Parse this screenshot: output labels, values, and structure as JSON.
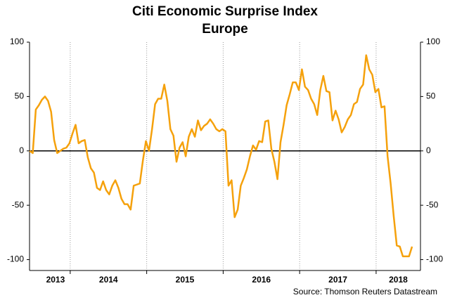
{
  "chart_data": {
    "type": "line",
    "title": "Citi Economic Surprise Index",
    "subtitle": "Europe",
    "source": "Source: Thomson Reuters Datastream",
    "year_labels": [
      "2013",
      "2014",
      "2015",
      "2016",
      "2017",
      "2018"
    ],
    "xlim": [
      2013.468,
      2018.58
    ],
    "xticks": [
      2014,
      2015,
      2016,
      2017,
      2018
    ],
    "ylim": [
      -110,
      100
    ],
    "yticks": [
      -100,
      -50,
      0,
      50,
      100
    ],
    "y2lim": [
      -110,
      100
    ],
    "y2ticks": [
      -100,
      -50,
      0,
      50,
      100
    ],
    "x": [
      2013.47,
      2013.51,
      2013.55,
      2013.59,
      2013.63,
      2013.67,
      2013.71,
      2013.75,
      2013.79,
      2013.83,
      2013.87,
      2013.91,
      2013.95,
      2013.99,
      2014.03,
      2014.07,
      2014.11,
      2014.15,
      2014.19,
      2014.23,
      2014.27,
      2014.31,
      2014.35,
      2014.39,
      2014.43,
      2014.47,
      2014.51,
      2014.55,
      2014.59,
      2014.63,
      2014.67,
      2014.71,
      2014.75,
      2014.79,
      2014.83,
      2014.87,
      2014.91,
      2014.95,
      2014.99,
      2015.03,
      2015.07,
      2015.11,
      2015.15,
      2015.19,
      2015.23,
      2015.27,
      2015.31,
      2015.35,
      2015.39,
      2015.43,
      2015.47,
      2015.51,
      2015.55,
      2015.59,
      2015.63,
      2015.67,
      2015.71,
      2015.75,
      2015.79,
      2015.83,
      2015.87,
      2015.91,
      2015.95,
      2015.99,
      2016.03,
      2016.07,
      2016.11,
      2016.15,
      2016.19,
      2016.23,
      2016.27,
      2016.31,
      2016.35,
      2016.39,
      2016.43,
      2016.47,
      2016.51,
      2016.55,
      2016.59,
      2016.63,
      2016.67,
      2016.71,
      2016.75,
      2016.79,
      2016.83,
      2016.87,
      2016.91,
      2016.95,
      2016.99,
      2017.03,
      2017.07,
      2017.11,
      2017.15,
      2017.19,
      2017.23,
      2017.27,
      2017.31,
      2017.35,
      2017.39,
      2017.43,
      2017.47,
      2017.51,
      2017.55,
      2017.59,
      2017.63,
      2017.67,
      2017.71,
      2017.75,
      2017.79,
      2017.83,
      2017.87,
      2017.91,
      2017.95,
      2017.99,
      2018.03,
      2018.07,
      2018.11,
      2018.15,
      2018.19,
      2018.23,
      2018.27,
      2018.31,
      2018.35,
      2018.39,
      2018.43,
      2018.47
    ],
    "series": [
      {
        "name": "Citi Economic Surprise Index Europe",
        "color": "#f5a10c",
        "values": [
          0,
          -2,
          38,
          42,
          47,
          50,
          46,
          36,
          10,
          -2,
          0,
          2,
          3,
          7,
          16,
          24,
          7,
          9,
          10,
          -6,
          -16,
          -20,
          -34,
          -36,
          -28,
          -36,
          -40,
          -32,
          -27,
          -34,
          -44,
          -49,
          -49,
          -54,
          -32,
          -31,
          -30,
          -9,
          9,
          0,
          20,
          43,
          48,
          48,
          61,
          46,
          20,
          14,
          -10,
          3,
          8,
          -5,
          13,
          20,
          13,
          28,
          19,
          23,
          25,
          29,
          25,
          20,
          18,
          20,
          18,
          -32,
          -27,
          -61,
          -54,
          -32,
          -25,
          -17,
          -5,
          5,
          1,
          9,
          8,
          27,
          28,
          2,
          -10,
          -26,
          8,
          24,
          42,
          52,
          63,
          63,
          56,
          75,
          59,
          56,
          48,
          43,
          33,
          56,
          69,
          55,
          54,
          28,
          37,
          29,
          17,
          22,
          29,
          33,
          43,
          45,
          57,
          61,
          88,
          75,
          70,
          54,
          57,
          40,
          41,
          -5,
          -30,
          -60,
          -87,
          -88,
          -97,
          -97,
          -97,
          -88
        ]
      }
    ]
  }
}
